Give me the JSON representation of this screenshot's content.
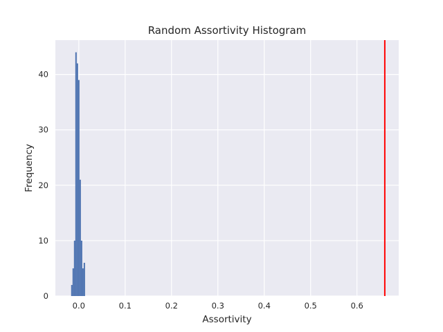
{
  "chart_data": {
    "type": "bar",
    "title": "Random Assortivity Histogram",
    "xlabel": "Assortivity",
    "ylabel": "Frequency",
    "xlim": [
      -0.0505,
      0.69
    ],
    "ylim": [
      0,
      46.2
    ],
    "xticks": [
      0.0,
      0.1,
      0.2,
      0.3,
      0.4,
      0.5,
      0.6
    ],
    "xtick_labels": [
      "0.0",
      "0.1",
      "0.2",
      "0.3",
      "0.4",
      "0.5",
      "0.6"
    ],
    "yticks": [
      0,
      10,
      20,
      30,
      40
    ],
    "ytick_labels": [
      "0",
      "10",
      "20",
      "30",
      "40"
    ],
    "bins": [
      {
        "x0": -0.0165,
        "x1": -0.0135,
        "count": 2
      },
      {
        "x0": -0.0135,
        "x1": -0.0105,
        "count": 5
      },
      {
        "x0": -0.0105,
        "x1": -0.0075,
        "count": 10
      },
      {
        "x0": -0.0075,
        "x1": -0.0045,
        "count": 44
      },
      {
        "x0": -0.0045,
        "x1": -0.0015,
        "count": 42
      },
      {
        "x0": -0.0015,
        "x1": 0.0015,
        "count": 39
      },
      {
        "x0": 0.0015,
        "x1": 0.0045,
        "count": 21
      },
      {
        "x0": 0.0045,
        "x1": 0.0075,
        "count": 10
      },
      {
        "x0": 0.0075,
        "x1": 0.0105,
        "count": 5
      },
      {
        "x0": 0.0105,
        "x1": 0.0135,
        "count": 6
      }
    ],
    "reference_line": {
      "x": 0.66,
      "color": "#ff0000"
    },
    "bar_color": "#4c72b0",
    "plot_background": "#eaeaf2",
    "grid": true,
    "grid_color": "#ffffff"
  }
}
